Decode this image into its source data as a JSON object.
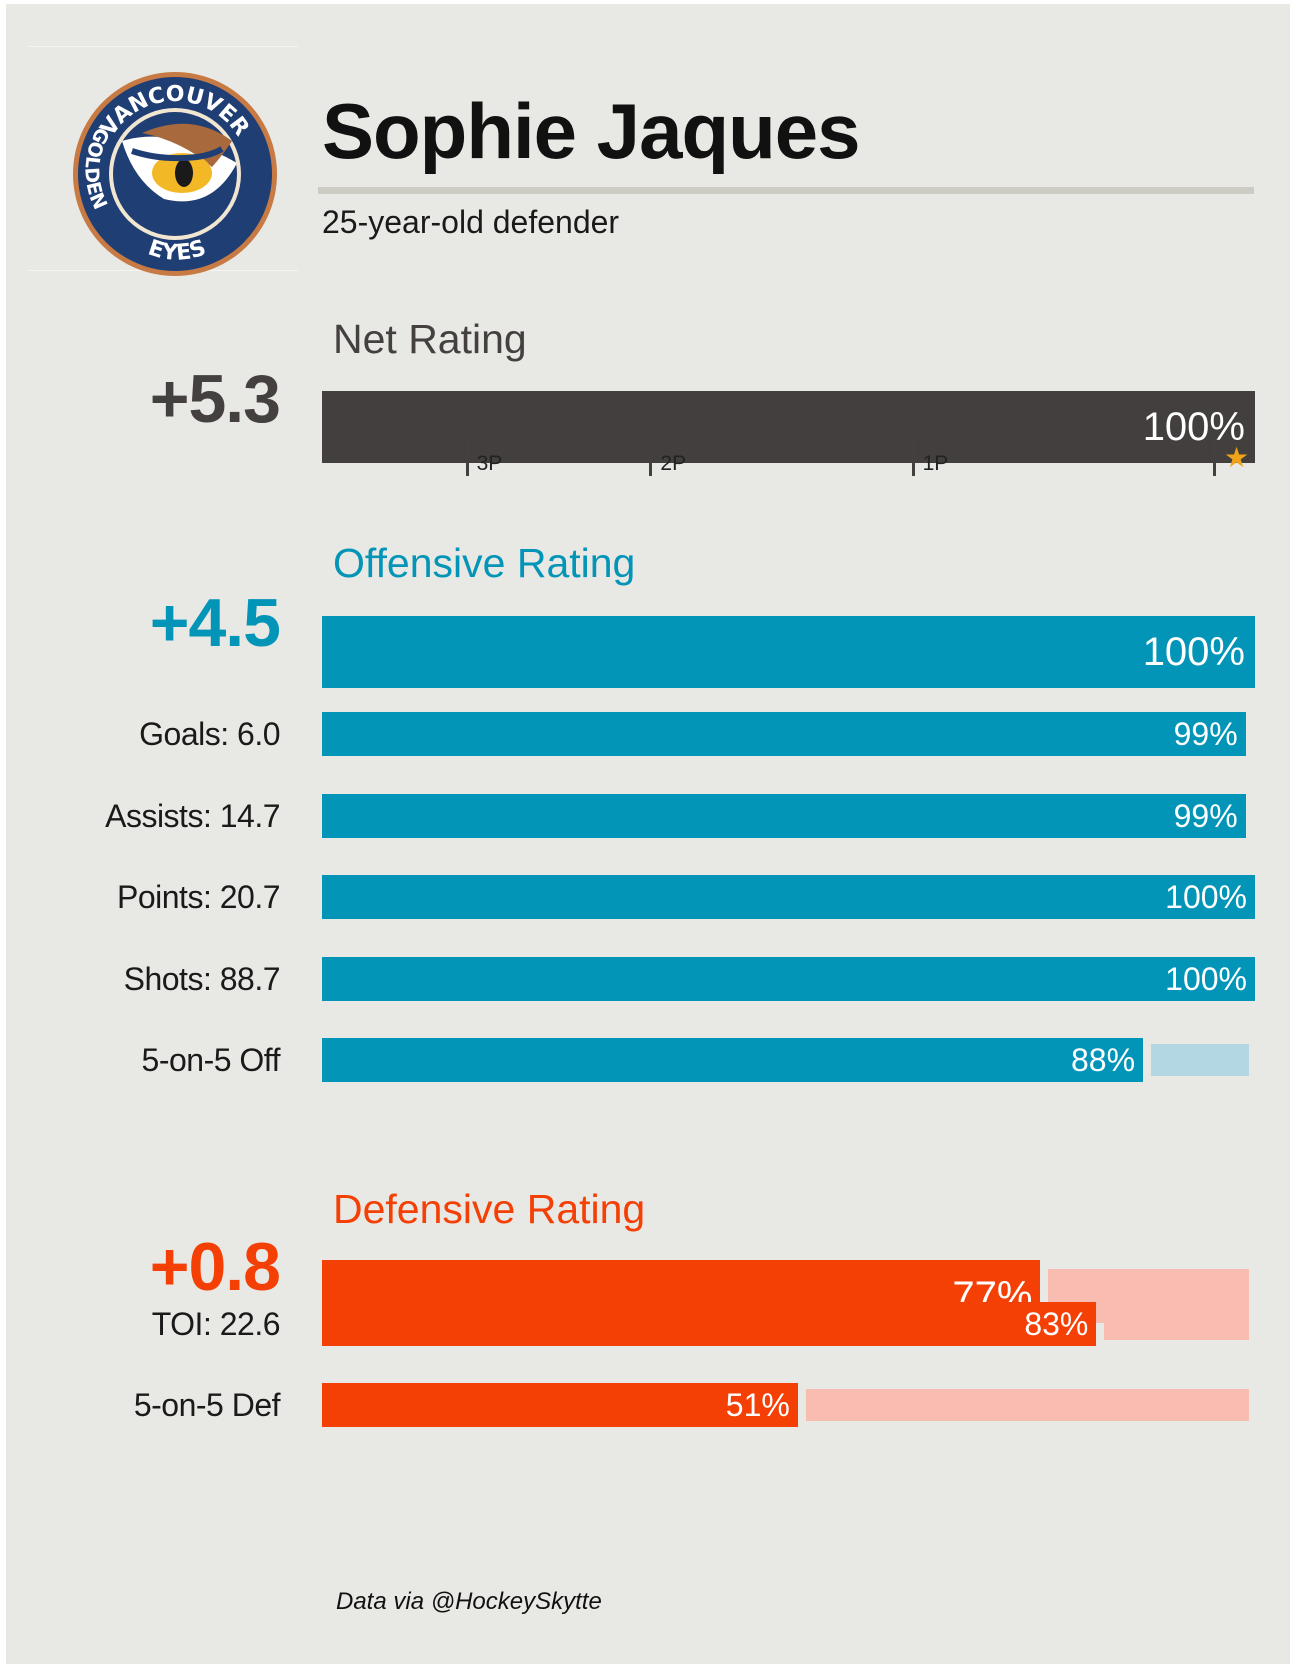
{
  "colors": {
    "net": "#423f3e",
    "offense": "#0395b8",
    "offense_track": "#b3d8e3",
    "defense": "#f43f05",
    "defense_track": "#f9bcb1"
  },
  "logo": {
    "team_text_top": "VANCOUVER",
    "team_text_left": "GOLDEN",
    "team_text_bottom": "EYES"
  },
  "player": {
    "name": "Sophie Jaques",
    "subtitle": "25-year-old defender"
  },
  "net": {
    "title": "Net Rating",
    "value": "+5.3",
    "percentile": 100,
    "percentile_label": "100%",
    "ticks": [
      {
        "label": "3P",
        "pct": 15.5
      },
      {
        "label": "2P",
        "pct": 35.2
      },
      {
        "label": "1P",
        "pct": 63.3
      },
      {
        "label": "★",
        "pct": 95.6
      }
    ]
  },
  "offense": {
    "title": "Offensive Rating",
    "value": "+4.5",
    "percentile": 100,
    "percentile_label": "100%",
    "rows": [
      {
        "label": "Goals: 6.0",
        "percentile": 99,
        "percentile_label": "99%"
      },
      {
        "label": "Assists: 14.7",
        "percentile": 99,
        "percentile_label": "99%"
      },
      {
        "label": "Points: 20.7",
        "percentile": 100,
        "percentile_label": "100%"
      },
      {
        "label": "Shots: 88.7",
        "percentile": 100,
        "percentile_label": "100%"
      },
      {
        "label": "5-on-5 Off",
        "percentile": 88,
        "percentile_label": "88%"
      }
    ]
  },
  "defense": {
    "title": "Defensive Rating",
    "value": "+0.8",
    "percentile": 77,
    "percentile_label": "77%",
    "rows": [
      {
        "label": "TOI: 22.6",
        "percentile": 83,
        "percentile_label": "83%"
      },
      {
        "label": "5-on-5 Def",
        "percentile": 51,
        "percentile_label": "51%"
      }
    ]
  },
  "credit": "Data via @HockeySkytte",
  "chart_data": {
    "type": "bar",
    "categories": [
      "Net Rating",
      "Offensive Rating",
      "Goals: 6.0",
      "Assists: 14.7",
      "Points: 20.7",
      "Shots: 88.7",
      "5-on-5 Off",
      "Defensive Rating",
      "TOI: 22.6",
      "5-on-5 Def"
    ],
    "values": [
      100,
      100,
      99,
      99,
      100,
      100,
      88,
      77,
      83,
      51
    ],
    "title": "Sophie Jaques",
    "subtitle": "25-year-old defender",
    "ylim": [
      0,
      100
    ]
  }
}
